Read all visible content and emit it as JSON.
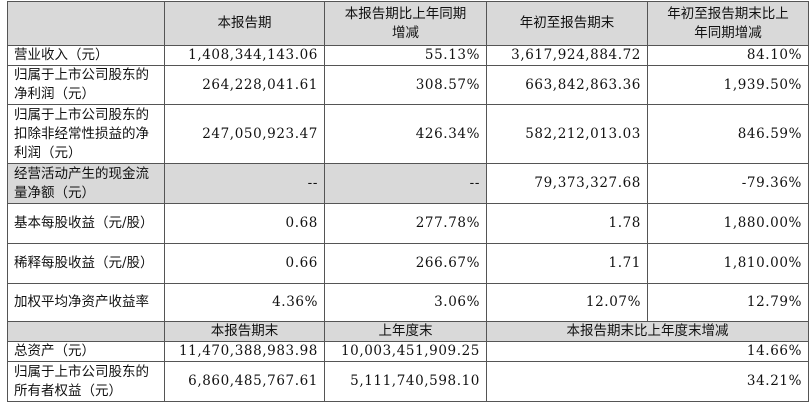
{
  "table": {
    "header": [
      "本报告期",
      "本报告期比上年同期增减",
      "年初至报告期末",
      "年初至报告期末比上年同期增减"
    ],
    "rows": [
      [
        "营业收入（元）",
        "1,408,344,143.06",
        "55.13%",
        "3,617,924,884.72",
        "84.10%"
      ],
      [
        "归属于上市公司股东的净利润（元）",
        "264,228,041.61",
        "308.57%",
        "663,842,863.36",
        "1,939.50%"
      ],
      [
        "归属于上市公司股东的扣除非经常性损益的净利润（元）",
        "247,050,923.47",
        "426.34%",
        "582,212,013.03",
        "846.59%"
      ],
      [
        "经营活动产生的现金流量净额（元）",
        "--",
        "--",
        "79,373,327.68",
        "-79.36%"
      ],
      [
        "基本每股收益（元/股）",
        "0.68",
        "277.78%",
        "1.78",
        "1,880.00%"
      ],
      [
        "稀释每股收益（元/股）",
        "0.66",
        "266.67%",
        "1.71",
        "1,810.00%"
      ],
      [
        "加权平均净资产收益率",
        "4.36%",
        "3.06%",
        "12.07%",
        "12.79%"
      ]
    ],
    "subheader": [
      "本报告期末",
      "上年度末",
      "本报告期末比上年度末增减"
    ],
    "rows2": [
      [
        "总资产（元）",
        "11,470,388,983.98",
        "10,003,451,909.25",
        "14.66%"
      ],
      [
        "归属于上市公司股东的所有者权益（元）",
        "6,860,485,767.61",
        "5,111,740,598.10",
        "34.21%"
      ]
    ]
  }
}
